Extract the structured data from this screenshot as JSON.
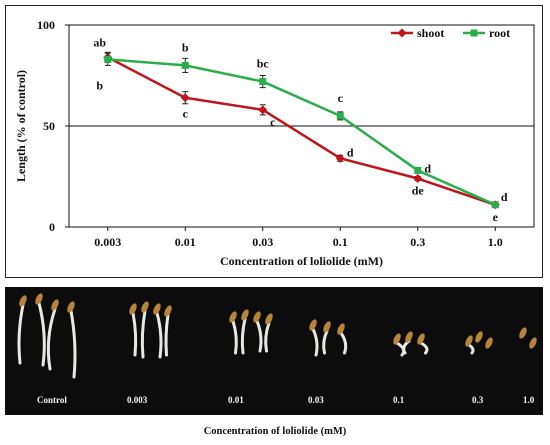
{
  "chart_data": {
    "type": "line",
    "categories": [
      "0.003",
      "0.01",
      "0.03",
      "0.1",
      "0.3",
      "1.0"
    ],
    "xlabel": "Concentration of loliolide (mM)",
    "ylabel": "Length (% of control)",
    "ylim": [
      0,
      100
    ],
    "yticks": [
      "0",
      "50",
      "100"
    ],
    "reference_line": 50,
    "legend_position": "top-right",
    "series": [
      {
        "name": "shoot",
        "color": "#c0141a",
        "marker": "diamond",
        "values": [
          84,
          64,
          58,
          34,
          24,
          11
        ],
        "errors": [
          2.5,
          3,
          2.5,
          1.5,
          1,
          1
        ],
        "labels": [
          "ab",
          "c",
          "c",
          "d",
          "de",
          "e"
        ]
      },
      {
        "name": "root",
        "color": "#2aae4a",
        "marker": "square",
        "values": [
          83,
          80,
          72,
          55,
          28,
          11
        ],
        "errors": [
          3,
          3.5,
          3,
          2,
          1,
          1
        ],
        "labels": [
          "b",
          "b",
          "bc",
          "c",
          "d",
          "d"
        ]
      }
    ]
  },
  "photo": {
    "labels": [
      "Control",
      "0.003",
      "0.01",
      "0.03",
      "0.1",
      "0.3",
      "1.0"
    ],
    "caption": "Concentration of loliolide (mM)"
  }
}
